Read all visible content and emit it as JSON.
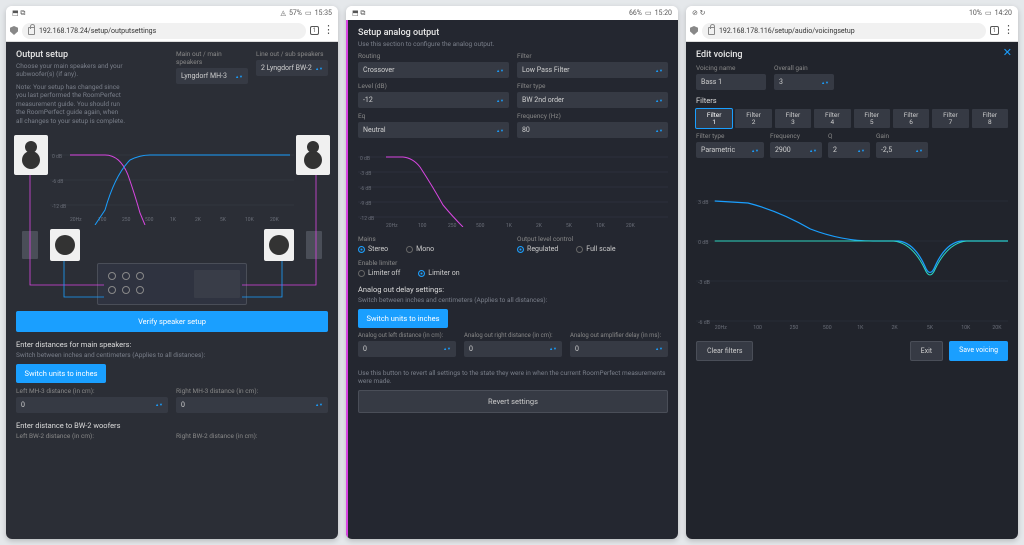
{
  "panel1": {
    "status": {
      "left_icons": "⬒ ⧉",
      "wifi": "◬",
      "battery": "▭",
      "battery_pct": "57%",
      "time": "15:35"
    },
    "url": "192.168.178.24/setup/outputsettings",
    "tab_count": "1",
    "title": "Output setup",
    "desc1": "Choose your main speakers and your subwoofer(s) (if any).",
    "desc2": "Note: Your setup has changed since you last performed the RoomPerfect measurement guide. You should run the RoomPerfect guide again, when all changes to your setup is complete.",
    "main_label": "Main out / main speakers",
    "main_value": "Lyngdorf MH-3",
    "line_label": "Line out / sub speakers",
    "line_value": "2 Lyngdorf BW-2",
    "chart": {
      "axes_color": "#4a4e58",
      "grid_color": "#3a3e48",
      "labels_color": "#6a6e78",
      "ticks_y": [
        "0 dB",
        "-6 dB",
        "-12 dB"
      ],
      "ticks_x": [
        "20Hz",
        "100",
        "250",
        "500",
        "1K",
        "2K",
        "5K",
        "10K",
        "20K"
      ],
      "line_a_color": "#1a9fff",
      "line_b_color": "#d946e2"
    },
    "verify_btn": "Verify speaker setup",
    "dist_main_label": "Enter distances for main speakers:",
    "dist_main_desc": "Switch between inches and centimeters (Applies to all distances):",
    "switch_units_btn": "Switch units to inches",
    "left_mh3_label": "Left MH-3 distance (in cm):",
    "right_mh3_label": "Right MH-3 distance (in cm):",
    "val_zero": "0",
    "bw2_header": "Enter distance to BW-2 woofers",
    "left_bw2_label": "Left BW-2 distance (in cm):",
    "right_bw2_label": "Right BW-2 distance (in cm):"
  },
  "panel2": {
    "status": {
      "left_icons": "⬒ ⧉",
      "battery_pct": "66%",
      "time": "15:20"
    },
    "title": "Setup analog output",
    "desc": "Use this section to configure the analog output.",
    "routing_label": "Routing",
    "routing_value": "Crossover",
    "filter_label": "Filter",
    "filter_value": "Low Pass Filter",
    "level_label": "Level (dB)",
    "level_value": "-12",
    "ftype_label": "Filter type",
    "ftype_value": "BW 2nd order",
    "eq_label": "Eq",
    "eq_value": "Neutral",
    "freq_label": "Frequency (Hz)",
    "freq_value": "80",
    "chart": {
      "ticks_y": [
        "0 dB",
        "-3 dB",
        "-6 dB",
        "-9 dB",
        "-12 dB"
      ],
      "ticks_x": [
        "20Hz",
        "100",
        "250",
        "500",
        "1K",
        "2K",
        "5K",
        "10K",
        "20K"
      ],
      "line_color": "#d946e2",
      "grid_color": "#34384a"
    },
    "mains_label": "Mains",
    "mains_stereo": "Stereo",
    "mains_mono": "Mono",
    "out_level_label": "Output level control",
    "out_reg": "Regulated",
    "out_full": "Full scale",
    "limiter_label": "Enable limiter",
    "lim_off": "Limiter off",
    "lim_on": "Limiter on",
    "delay_header": "Analog out delay settings:",
    "delay_desc": "Switch between inches and centimeters (Applies to all distances):",
    "switch_btn": "Switch units to inches",
    "aol_left": "Analog out left distance (in cm):",
    "aol_right": "Analog out right distance (in cm):",
    "aol_amp": "Analog out amplifier delay (in ms):",
    "val_zero": "0",
    "revert_desc": "Use this button to revert all settings to the state they were in when the current RoomPerfect measurements were made.",
    "revert_btn": "Revert settings"
  },
  "panel3": {
    "status": {
      "left_icons": "⊘ ↻",
      "battery_pct": "10%",
      "time": "14:20"
    },
    "url": "192.168.178.116/setup/audio/voicingsetup",
    "tab_count": "1",
    "title": "Edit voicing",
    "vname_label": "Voicing name",
    "vname_value": "Bass 1",
    "ogain_label": "Overall gain",
    "ogain_value": "3",
    "filters_label": "Filters",
    "tabs": [
      "Filter\n1",
      "Filter\n2",
      "Filter\n3",
      "Filter\n4",
      "Filter\n5",
      "Filter\n6",
      "Filter\n7",
      "Filter\n8"
    ],
    "ftype_label": "Filter type",
    "ftype_value": "Parametric",
    "freq_label": "Frequency",
    "freq_value": "2900",
    "q_label": "Q",
    "q_value": "2",
    "gain_label": "Gain",
    "gain_value": "-2,5",
    "chart": {
      "ticks_y": [
        "3 dB",
        "0 dB",
        "-3 dB",
        "-6 dB"
      ],
      "ticks_x": [
        "20Hz",
        "100",
        "250",
        "500",
        "1K",
        "2K",
        "5K",
        "10K",
        "20K"
      ],
      "line_a_color": "#1a9fff",
      "line_b_color": "#2dd4bf"
    },
    "clear_btn": "Clear filters",
    "exit_btn": "Exit",
    "save_btn": "Save voicing"
  }
}
